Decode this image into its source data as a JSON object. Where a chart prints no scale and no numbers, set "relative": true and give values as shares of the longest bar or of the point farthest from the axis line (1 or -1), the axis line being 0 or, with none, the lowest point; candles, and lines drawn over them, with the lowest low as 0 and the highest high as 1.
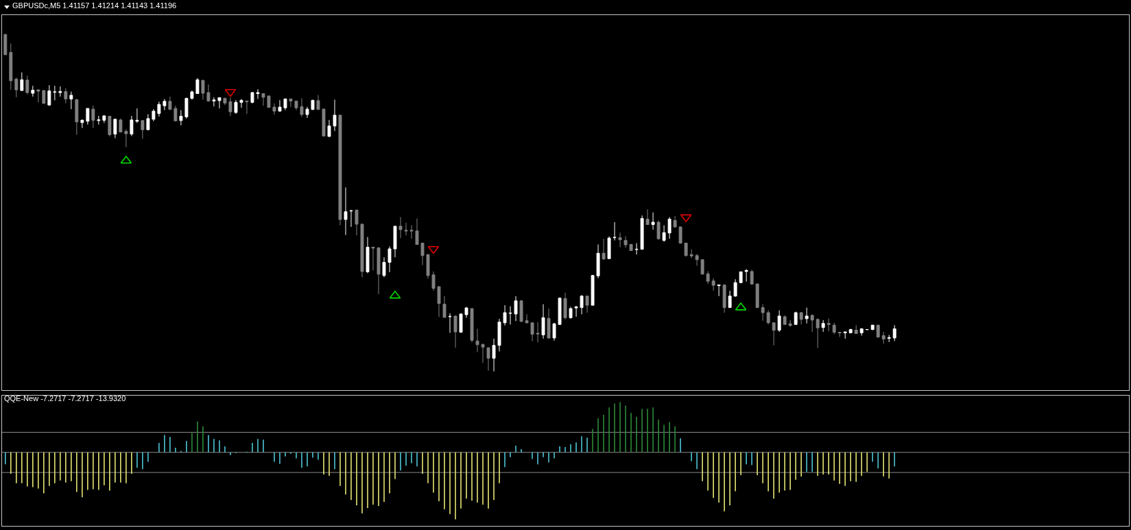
{
  "chart_data": [
    {
      "type": "candlestick",
      "title": "GBPUSDc,M5 1.41157 1.41214 1.41143 1.41196",
      "relative": true,
      "categories": [
        null,
        null,
        null,
        null,
        null,
        null,
        null,
        null,
        null,
        null,
        null,
        null,
        null,
        null,
        null,
        null,
        null,
        null,
        null,
        null,
        null,
        null,
        null,
        null,
        null,
        null,
        null,
        null,
        null,
        null,
        null,
        null,
        null,
        null,
        null,
        null,
        null,
        null,
        null,
        null,
        null,
        null,
        null,
        null,
        null,
        null,
        null,
        null,
        null,
        null,
        null,
        null,
        null,
        null,
        null,
        null,
        null,
        null,
        null,
        null,
        null,
        null,
        null,
        null,
        null,
        null,
        null,
        null,
        null,
        null,
        null,
        null,
        null,
        null,
        null,
        null,
        null,
        null,
        null,
        null,
        null,
        null,
        null,
        null,
        null,
        null,
        null,
        null,
        null,
        null,
        null,
        null,
        null,
        null,
        null,
        null,
        null,
        null,
        null,
        null,
        null,
        null,
        null,
        null,
        null,
        null,
        null,
        null,
        null,
        null,
        null,
        null,
        null,
        null,
        null,
        null,
        null,
        null,
        null,
        null,
        null,
        null,
        null,
        null,
        null,
        null,
        null,
        null,
        null,
        null,
        null,
        null,
        null,
        null,
        null,
        null,
        null,
        null,
        null,
        null,
        null,
        null,
        null,
        null,
        null,
        null,
        null,
        null,
        null,
        null,
        null,
        null,
        null,
        null,
        null,
        null,
        null,
        null,
        null,
        null,
        null,
        null,
        null
      ],
      "ohlc": [
        [
          0.998,
          1,
          0.938,
          0.938
        ],
        [
          0.945,
          0.971,
          0.834,
          0.861
        ],
        [
          0.866,
          0.87,
          0.812,
          0.834
        ],
        [
          0.832,
          0.886,
          0.831,
          0.864
        ],
        [
          0.863,
          0.876,
          0.821,
          0.826
        ],
        [
          0.824,
          0.846,
          0.814,
          0.833
        ],
        [
          0.834,
          0.836,
          0.797,
          0.83
        ],
        [
          0.832,
          0.834,
          0.793,
          0.794
        ],
        [
          0.789,
          0.848,
          0.787,
          0.831
        ],
        [
          0.827,
          0.846,
          0.803,
          0.828
        ],
        [
          0.826,
          0.844,
          0.814,
          0.829
        ],
        [
          0.829,
          0.839,
          0.794,
          0.807
        ],
        [
          0.807,
          0.829,
          0.777,
          0.818
        ],
        [
          0.805,
          0.807,
          0.701,
          0.739
        ],
        [
          0.737,
          0.747,
          0.721,
          0.744
        ],
        [
          0.741,
          0.78,
          0.731,
          0.779
        ],
        [
          0.777,
          0.787,
          0.721,
          0.744
        ],
        [
          0.743,
          0.757,
          0.731,
          0.745
        ],
        [
          0.744,
          0.759,
          0.736,
          0.757
        ],
        [
          0.756,
          0.757,
          0.696,
          0.701
        ],
        [
          0.703,
          0.749,
          0.691,
          0.747
        ],
        [
          0.745,
          0.749,
          0.708,
          0.709
        ],
        [
          0.711,
          0.717,
          0.664,
          0.704
        ],
        [
          0.703,
          0.757,
          0.697,
          0.745
        ],
        [
          0.741,
          0.779,
          0.736,
          0.744
        ],
        [
          0.743,
          0.744,
          0.689,
          0.716
        ],
        [
          0.716,
          0.762,
          0.715,
          0.749
        ],
        [
          0.747,
          0.777,
          0.741,
          0.771
        ],
        [
          0.764,
          0.799,
          0.755,
          0.791
        ],
        [
          0.787,
          0.807,
          0.774,
          0.8
        ],
        [
          0.8,
          0.814,
          0.775,
          0.776
        ],
        [
          0.779,
          0.787,
          0.741,
          0.742
        ],
        [
          0.743,
          0.774,
          0.729,
          0.756
        ],
        [
          0.754,
          0.811,
          0.749,
          0.809
        ],
        [
          0.809,
          0.832,
          0.805,
          0.828
        ],
        [
          0.823,
          0.869,
          0.822,
          0.864
        ],
        [
          0.862,
          0.864,
          0.805,
          0.824
        ],
        [
          0.826,
          0.85,
          0.799,
          0.801
        ],
        [
          0.801,
          0.812,
          0.785,
          0.804
        ],
        [
          0.802,
          0.812,
          0.779,
          0.811
        ],
        [
          0.809,
          0.811,
          0.789,
          0.795
        ],
        [
          0.799,
          0.811,
          0.757,
          0.769
        ],
        [
          0.767,
          0.804,
          0.763,
          0.797
        ],
        [
          0.797,
          0.807,
          0.781,
          0.803
        ],
        [
          0.801,
          0.802,
          0.763,
          0.799
        ],
        [
          0.797,
          0.828,
          0.794,
          0.826
        ],
        [
          0.823,
          0.836,
          0.807,
          0.826
        ],
        [
          0.823,
          0.824,
          0.787,
          0.812
        ],
        [
          0.816,
          0.817,
          0.781,
          0.782
        ],
        [
          0.783,
          0.794,
          0.761,
          0.771
        ],
        [
          0.771,
          0.804,
          0.769,
          0.783
        ],
        [
          0.781,
          0.809,
          0.774,
          0.807
        ],
        [
          0.807,
          0.809,
          0.783,
          0.801
        ],
        [
          0.801,
          0.802,
          0.774,
          0.781
        ],
        [
          0.784,
          0.809,
          0.754,
          0.761
        ],
        [
          0.761,
          0.784,
          0.751,
          0.777
        ],
        [
          0.776,
          0.805,
          0.774,
          0.803
        ],
        [
          0.802,
          0.819,
          0.775,
          0.776
        ],
        [
          0.777,
          0.779,
          0.696,
          0.697
        ],
        [
          0.696,
          0.745,
          0.695,
          0.727
        ],
        [
          0.727,
          0.805,
          0.712,
          0.759
        ],
        [
          0.759,
          0.76,
          0.433,
          0.45
        ],
        [
          0.45,
          0.545,
          0.404,
          0.473
        ],
        [
          0.475,
          0.478,
          0.428,
          0.476
        ],
        [
          0.478,
          0.479,
          0.403,
          0.436
        ],
        [
          0.436,
          0.438,
          0.279,
          0.296
        ],
        [
          0.295,
          0.398,
          0.291,
          0.368
        ],
        [
          0.368,
          0.369,
          0.299,
          0.365
        ],
        [
          0.366,
          0.368,
          0.229,
          0.288
        ],
        [
          0.284,
          0.338,
          0.279,
          0.323
        ],
        [
          0.323,
          0.37,
          0.294,
          0.363
        ],
        [
          0.363,
          0.431,
          0.338,
          0.43
        ],
        [
          0.43,
          0.457,
          0.395,
          0.42
        ],
        [
          0.418,
          0.44,
          0.403,
          0.416
        ],
        [
          0.418,
          0.433,
          0.393,
          0.416
        ],
        [
          0.416,
          0.453,
          0.375,
          0.376
        ],
        [
          0.38,
          0.381,
          0.315,
          0.343
        ],
        [
          0.346,
          0.348,
          0.275,
          0.284
        ],
        [
          0.286,
          0.296,
          0.239,
          0.246
        ],
        [
          0.251,
          0.252,
          0.161,
          0.201
        ],
        [
          0.199,
          0.223,
          0.159,
          0.16
        ],
        [
          0.162,
          0.172,
          0.114,
          0.163
        ],
        [
          0.164,
          0.165,
          0.07,
          0.117
        ],
        [
          0.116,
          0.172,
          0.114,
          0.17
        ],
        [
          0.168,
          0.191,
          0.159,
          0.188
        ],
        [
          0.186,
          0.187,
          0.086,
          0.092
        ],
        [
          0.09,
          0.126,
          0.057,
          0.079
        ],
        [
          0.08,
          0.082,
          0.025,
          0.072
        ],
        [
          0.07,
          0.072,
          0.002,
          0.039
        ],
        [
          0.039,
          0.097,
          0,
          0.077
        ],
        [
          0.077,
          0.156,
          0.059,
          0.146
        ],
        [
          0.144,
          0.196,
          0.136,
          0.174
        ],
        [
          0.172,
          0.193,
          0.139,
          0.173
        ],
        [
          0.17,
          0.223,
          0.149,
          0.209
        ],
        [
          0.209,
          0.211,
          0.146,
          0.148
        ],
        [
          0.15,
          0.169,
          0.142,
          0.144
        ],
        [
          0.144,
          0.145,
          0.089,
          0.11
        ],
        [
          0.113,
          0.146,
          0.086,
          0.111
        ],
        [
          0.108,
          0.199,
          0.097,
          0.159
        ],
        [
          0.157,
          0.186,
          0.096,
          0.099
        ],
        [
          0.099,
          0.144,
          0.091,
          0.141
        ],
        [
          0.139,
          0.219,
          0.138,
          0.217
        ],
        [
          0.216,
          0.233,
          0.154,
          0.159
        ],
        [
          0.159,
          0.191,
          0.156,
          0.186
        ],
        [
          0.188,
          0.194,
          0.162,
          0.191
        ],
        [
          0.189,
          0.226,
          0.169,
          0.223
        ],
        [
          0.223,
          0.224,
          0.174,
          0.196
        ],
        [
          0.196,
          0.286,
          0.195,
          0.284
        ],
        [
          0.283,
          0.376,
          0.276,
          0.35
        ],
        [
          0.35,
          0.393,
          0.33,
          0.333
        ],
        [
          0.334,
          0.4,
          0.333,
          0.395
        ],
        [
          0.396,
          0.442,
          0.388,
          0.397
        ],
        [
          0.396,
          0.411,
          0.368,
          0.39
        ],
        [
          0.388,
          0.4,
          0.366,
          0.375
        ],
        [
          0.376,
          0.378,
          0.357,
          0.358
        ],
        [
          0.361,
          0.38,
          0.346,
          0.362
        ],
        [
          0.362,
          0.462,
          0.36,
          0.453
        ],
        [
          0.451,
          0.48,
          0.434,
          0.435
        ],
        [
          0.435,
          0.471,
          0.42,
          0.442
        ],
        [
          0.442,
          0.447,
          0.39,
          0.393
        ],
        [
          0.388,
          0.433,
          0.384,
          0.411
        ],
        [
          0.41,
          0.457,
          0.393,
          0.451
        ],
        [
          0.447,
          0.46,
          0.426,
          0.428
        ],
        [
          0.428,
          0.429,
          0.378,
          0.38
        ],
        [
          0.38,
          0.381,
          0.34,
          0.343
        ],
        [
          0.346,
          0.362,
          0.335,
          0.342
        ],
        [
          0.343,
          0.348,
          0.313,
          0.331
        ],
        [
          0.331,
          0.332,
          0.287,
          0.288
        ],
        [
          0.289,
          0.297,
          0.259,
          0.267
        ],
        [
          0.268,
          0.276,
          0.239,
          0.255
        ],
        [
          0.254,
          0.257,
          0.223,
          0.256
        ],
        [
          0.256,
          0.257,
          0.174,
          0.189
        ],
        [
          0.189,
          0.239,
          0.188,
          0.223
        ],
        [
          0.223,
          0.273,
          0.221,
          0.263
        ],
        [
          0.263,
          0.296,
          0.261,
          0.295
        ],
        [
          0.296,
          0.303,
          0.266,
          0.299
        ],
        [
          0.296,
          0.301,
          0.256,
          0.259
        ],
        [
          0.259,
          0.261,
          0.188,
          0.189
        ],
        [
          0.189,
          0.199,
          0.15,
          0.174
        ],
        [
          0.174,
          0.181,
          0.139,
          0.144
        ],
        [
          0.144,
          0.145,
          0.077,
          0.122
        ],
        [
          0.122,
          0.181,
          0.117,
          0.164
        ],
        [
          0.162,
          0.166,
          0.138,
          0.139
        ],
        [
          0.141,
          0.152,
          0.132,
          0.136
        ],
        [
          0.139,
          0.177,
          0.138,
          0.174
        ],
        [
          0.174,
          0.176,
          0.139,
          0.154
        ],
        [
          0.156,
          0.189,
          0.142,
          0.164
        ],
        [
          0.166,
          0.169,
          0.117,
          0.152
        ],
        [
          0.154,
          0.157,
          0.069,
          0.129
        ],
        [
          0.13,
          0.152,
          0.117,
          0.142
        ],
        [
          0.142,
          0.157,
          0.119,
          0.139
        ],
        [
          0.137,
          0.144,
          0.11,
          0.116
        ],
        [
          0.116,
          0.117,
          0.102,
          0.114
        ],
        [
          0.114,
          0.118,
          0.097,
          0.117
        ],
        [
          0.114,
          0.126,
          0.113,
          0.124
        ],
        [
          0.122,
          0.137,
          0.111,
          0.112
        ],
        [
          0.114,
          0.128,
          0.106,
          0.126
        ],
        [
          0.124,
          0.125,
          0.122,
          0.124
        ],
        [
          0.124,
          0.138,
          0.122,
          0.137
        ],
        [
          0.137,
          0.138,
          0.099,
          0.102
        ],
        [
          0.106,
          0.117,
          0.082,
          0.096
        ],
        [
          0.098,
          0.108,
          0.087,
          0.1
        ],
        [
          0.099,
          0.137,
          0.09,
          0.126
        ]
      ],
      "colors": [
        "#808080",
        "#808080",
        "#808080",
        "#ffffff",
        "#808080",
        "#ffffff",
        "#808080",
        "#808080",
        "#ffffff",
        "#ffffff",
        "#ffffff",
        "#808080",
        "#ffffff",
        "#808080",
        "#ffffff",
        "#ffffff",
        "#808080",
        "#ffffff",
        "#ffffff",
        "#808080",
        "#ffffff",
        "#808080",
        "#808080",
        "#ffffff",
        "#ffffff",
        "#808080",
        "#ffffff",
        "#ffffff",
        "#ffffff",
        "#ffffff",
        "#808080",
        "#808080",
        "#ffffff",
        "#ffffff",
        "#ffffff",
        "#ffffff",
        "#808080",
        "#808080",
        "#ffffff",
        "#ffffff",
        "#808080",
        "#808080",
        "#ffffff",
        "#ffffff",
        "#808080",
        "#ffffff",
        "#ffffff",
        "#808080",
        "#808080",
        "#808080",
        "#ffffff",
        "#ffffff",
        "#808080",
        "#808080",
        "#808080",
        "#ffffff",
        "#ffffff",
        "#808080",
        "#808080",
        "#ffffff",
        "#ffffff",
        "#808080",
        "#ffffff",
        "#ffffff",
        "#808080",
        "#808080",
        "#ffffff",
        "#808080",
        "#808080",
        "#ffffff",
        "#ffffff",
        "#ffffff",
        "#808080",
        "#808080",
        "#808080",
        "#808080",
        "#808080",
        "#808080",
        "#808080",
        "#808080",
        "#808080",
        "#ffffff",
        "#808080",
        "#ffffff",
        "#ffffff",
        "#808080",
        "#808080",
        "#808080",
        "#808080",
        "#ffffff",
        "#ffffff",
        "#ffffff",
        "#ffffff",
        "#ffffff",
        "#808080",
        "#808080",
        "#808080",
        "#808080",
        "#ffffff",
        "#808080",
        "#ffffff",
        "#ffffff",
        "#808080",
        "#ffffff",
        "#ffffff",
        "#ffffff",
        "#808080",
        "#ffffff",
        "#ffffff",
        "#808080",
        "#ffffff",
        "#ffffff",
        "#808080",
        "#808080",
        "#808080",
        "#ffffff",
        "#ffffff",
        "#808080",
        "#ffffff",
        "#808080",
        "#ffffff",
        "#ffffff",
        "#808080",
        "#808080",
        "#808080",
        "#808080",
        "#808080",
        "#808080",
        "#808080",
        "#808080",
        "#ffffff",
        "#808080",
        "#ffffff",
        "#ffffff",
        "#ffffff",
        "#ffffff",
        "#808080",
        "#808080",
        "#808080",
        "#808080",
        "#808080",
        "#ffffff",
        "#808080",
        "#808080",
        "#ffffff",
        "#808080",
        "#ffffff",
        "#808080",
        "#808080",
        "#ffffff",
        "#808080",
        "#808080",
        "#808080",
        "#ffffff",
        "#ffffff",
        "#808080",
        "#ffffff",
        "#ffffff",
        "#ffffff",
        "#808080",
        "#808080",
        "#ffffff",
        "#ffffff"
      ],
      "series": [
        {
          "type": "scatter",
          "marker": "triangle",
          "color": "#00e000",
          "values": [
            null,
            null,
            null,
            null,
            null,
            null,
            null,
            null,
            null,
            null,
            null,
            null,
            null,
            null,
            null,
            null,
            null,
            null,
            null,
            null,
            null,
            null,
            0.624,
            null,
            null,
            null,
            null,
            null,
            null,
            null,
            null,
            null,
            null,
            null,
            null,
            null,
            null,
            null,
            null,
            null,
            null,
            null,
            null,
            null,
            null,
            null,
            null,
            null,
            null,
            null,
            null,
            null,
            null,
            null,
            null,
            null,
            null,
            null,
            null,
            null,
            null,
            null,
            null,
            null,
            null,
            null,
            null,
            null,
            null,
            null,
            null,
            0.224,
            null,
            null,
            null,
            null,
            null,
            null,
            null,
            null,
            null,
            null,
            null,
            null,
            null,
            null,
            null,
            null,
            null,
            null,
            null,
            null,
            null,
            null,
            null,
            null,
            null,
            null,
            null,
            null,
            null,
            null,
            null,
            null,
            null,
            null,
            null,
            null,
            null,
            null,
            null,
            null,
            null,
            null,
            null,
            null,
            null,
            null,
            null,
            null,
            null,
            null,
            null,
            null,
            null,
            null,
            null,
            null,
            null,
            null,
            null,
            null,
            null,
            null,
            0.189,
            null,
            null,
            null,
            null,
            null,
            null,
            null,
            null,
            null,
            null,
            null,
            null,
            null,
            null,
            null,
            null,
            null,
            null,
            null,
            null,
            null,
            null,
            null,
            null,
            null,
            null,
            null,
            null
          ]
        },
        {
          "type": "scatter",
          "marker": "triangle",
          "color": "#e00000",
          "values": [
            null,
            null,
            null,
            null,
            null,
            null,
            null,
            null,
            null,
            null,
            null,
            null,
            null,
            null,
            null,
            null,
            null,
            null,
            null,
            null,
            null,
            null,
            null,
            null,
            null,
            null,
            null,
            null,
            null,
            null,
            null,
            null,
            null,
            null,
            null,
            null,
            null,
            null,
            null,
            null,
            null,
            0.828,
            null,
            null,
            null,
            null,
            null,
            null,
            null,
            null,
            null,
            null,
            null,
            null,
            null,
            null,
            null,
            null,
            null,
            null,
            null,
            null,
            null,
            null,
            null,
            null,
            null,
            null,
            null,
            null,
            null,
            null,
            null,
            null,
            null,
            null,
            null,
            null,
            0.363,
            null,
            null,
            null,
            null,
            null,
            null,
            null,
            null,
            null,
            null,
            null,
            null,
            null,
            null,
            null,
            null,
            null,
            null,
            null,
            null,
            null,
            null,
            null,
            null,
            null,
            null,
            null,
            null,
            null,
            null,
            null,
            null,
            null,
            null,
            null,
            null,
            null,
            null,
            null,
            null,
            null,
            null,
            null,
            null,
            null,
            0.457,
            null,
            null,
            null,
            null,
            null,
            null,
            null,
            null,
            null,
            null,
            null,
            null,
            null,
            null,
            null,
            null,
            null,
            null,
            null,
            null,
            null,
            null,
            null,
            null,
            null,
            null,
            null,
            null,
            null,
            null,
            null,
            null,
            null,
            null,
            null,
            null,
            null,
            null
          ]
        }
      ]
    },
    {
      "type": "bar",
      "title": "QQE-New -7.2717 -7.2717 -13.9320",
      "relative": true,
      "categories": [
        null,
        null,
        null,
        null,
        null,
        null,
        null,
        null,
        null,
        null,
        null,
        null,
        null,
        null,
        null,
        null,
        null,
        null,
        null,
        null,
        null,
        null,
        null,
        null,
        null,
        null,
        null,
        null,
        null,
        null,
        null,
        null,
        null,
        null,
        null,
        null,
        null,
        null,
        null,
        null,
        null,
        null,
        null,
        null,
        null,
        null,
        null,
        null,
        null,
        null,
        null,
        null,
        null,
        null,
        null,
        null,
        null,
        null,
        null,
        null,
        null,
        null,
        null,
        null,
        null,
        null,
        null,
        null,
        null,
        null,
        null,
        null,
        null,
        null,
        null,
        null,
        null,
        null,
        null,
        null,
        null,
        null,
        null,
        null,
        null,
        null,
        null,
        null,
        null,
        null,
        null,
        null,
        null,
        null,
        null,
        null,
        null,
        null,
        null,
        null,
        null,
        null,
        null,
        null,
        null,
        null,
        null,
        null,
        null,
        null,
        null,
        null,
        null,
        null,
        null,
        null,
        null,
        null,
        null,
        null,
        null,
        null,
        null,
        null,
        null,
        null,
        null,
        null,
        null,
        null,
        null,
        null,
        null,
        null,
        null,
        null,
        null,
        null,
        null,
        null,
        null,
        null,
        null,
        null,
        null,
        null,
        null,
        null,
        null,
        null,
        null,
        null,
        null,
        null,
        null,
        null,
        null,
        null,
        null,
        null,
        null,
        null,
        null
      ],
      "values": [
        -0.18,
        -0.32,
        -0.46,
        -0.46,
        -0.51,
        -0.52,
        -0.54,
        -0.61,
        -0.5,
        -0.46,
        -0.42,
        -0.45,
        -0.43,
        -0.59,
        -0.67,
        -0.56,
        -0.55,
        -0.56,
        -0.49,
        -0.57,
        -0.45,
        -0.45,
        -0.46,
        -0.32,
        -0.23,
        -0.25,
        -0.14,
        null,
        0.14,
        0.26,
        0.23,
        0.07,
        0.02,
        0.17,
        0.29,
        0.46,
        0.39,
        0.26,
        0.2,
        0.18,
        0.09,
        -0.04,
        -0.01,
        null,
        0.01,
        0.14,
        0.2,
        0.19,
        null,
        -0.14,
        -0.17,
        -0.06,
        -0.02,
        -0.09,
        -0.23,
        -0.21,
        -0.08,
        -0.11,
        -0.33,
        -0.35,
        -0.25,
        -0.5,
        -0.63,
        -0.71,
        -0.79,
        -0.91,
        -0.83,
        -0.78,
        -0.8,
        -0.74,
        -0.61,
        -0.4,
        -0.27,
        -0.2,
        -0.16,
        -0.21,
        -0.32,
        -0.46,
        -0.6,
        -0.73,
        -0.85,
        -0.92,
        -1,
        -0.84,
        -0.69,
        -0.72,
        -0.75,
        -0.78,
        -0.84,
        -0.71,
        -0.46,
        -0.22,
        -0.07,
        0.1,
        0.05,
        null,
        -0.1,
        -0.18,
        -0.07,
        -0.15,
        -0.09,
        0.09,
        0.08,
        0.12,
        0.15,
        0.24,
        0.22,
        0.35,
        0.51,
        0.56,
        0.67,
        0.73,
        0.75,
        0.7,
        0.59,
        0.53,
        0.65,
        0.65,
        0.67,
        0.49,
        0.41,
        0.45,
        0.39,
        0.21,
        null,
        -0.13,
        -0.25,
        -0.43,
        -0.57,
        -0.68,
        -0.75,
        -0.88,
        -0.79,
        -0.58,
        -0.34,
        -0.18,
        -0.19,
        -0.34,
        -0.46,
        -0.58,
        -0.69,
        -0.6,
        -0.57,
        -0.56,
        -0.41,
        -0.36,
        -0.29,
        -0.29,
        -0.35,
        -0.33,
        -0.33,
        -0.42,
        -0.47,
        -0.5,
        -0.43,
        -0.44,
        -0.35,
        -0.29,
        -0.14,
        -0.24,
        -0.36,
        -0.39,
        -0.21
      ],
      "colors": [
        "#4fc6d6",
        "#e6e673",
        "#e6e673",
        "#e6e673",
        "#e6e673",
        "#e6e673",
        "#e6e673",
        "#e6e673",
        "#e6e673",
        "#e6e673",
        "#e6e673",
        "#e6e673",
        "#e6e673",
        "#e6e673",
        "#e6e673",
        "#e6e673",
        "#e6e673",
        "#e6e673",
        "#e6e673",
        "#e6e673",
        "#e6e673",
        "#e6e673",
        "#e6e673",
        "#e6e673",
        "#4fc6d6",
        "#4fc6d6",
        "#4fc6d6",
        "#4fc6d6",
        "#4fc6d6",
        "#4fc6d6",
        "#4fc6d6",
        "#4fc6d6",
        "#4fc6d6",
        "#4fc6d6",
        "#2e8b3a",
        "#2e8b3a",
        "#2e8b3a",
        "#4fc6d6",
        "#4fc6d6",
        "#4fc6d6",
        "#4fc6d6",
        "#4fc6d6",
        "#4fc6d6",
        "#4fc6d6",
        "#4fc6d6",
        "#4fc6d6",
        "#4fc6d6",
        "#4fc6d6",
        "#4fc6d6",
        "#4fc6d6",
        "#4fc6d6",
        "#4fc6d6",
        "#4fc6d6",
        "#4fc6d6",
        "#4fc6d6",
        "#4fc6d6",
        "#4fc6d6",
        "#4fc6d6",
        "#e6e673",
        "#e6e673",
        "#4fc6d6",
        "#e6e673",
        "#e6e673",
        "#e6e673",
        "#e6e673",
        "#e6e673",
        "#e6e673",
        "#e6e673",
        "#e6e673",
        "#e6e673",
        "#e6e673",
        "#e6e673",
        "#4fc6d6",
        "#4fc6d6",
        "#4fc6d6",
        "#4fc6d6",
        "#e6e673",
        "#e6e673",
        "#e6e673",
        "#e6e673",
        "#e6e673",
        "#e6e673",
        "#e6e673",
        "#e6e673",
        "#e6e673",
        "#e6e673",
        "#e6e673",
        "#e6e673",
        "#e6e673",
        "#e6e673",
        "#e6e673",
        "#4fc6d6",
        "#4fc6d6",
        "#4fc6d6",
        "#4fc6d6",
        "#4fc6d6",
        "#4fc6d6",
        "#4fc6d6",
        "#4fc6d6",
        "#4fc6d6",
        "#4fc6d6",
        "#4fc6d6",
        "#4fc6d6",
        "#4fc6d6",
        "#4fc6d6",
        "#4fc6d6",
        "#4fc6d6",
        "#2e8b3a",
        "#2e8b3a",
        "#2e8b3a",
        "#2e8b3a",
        "#2e8b3a",
        "#2e8b3a",
        "#2e8b3a",
        "#2e8b3a",
        "#2e8b3a",
        "#2e8b3a",
        "#2e8b3a",
        "#2e8b3a",
        "#2e8b3a",
        "#2e8b3a",
        "#2e8b3a",
        "#2e8b3a",
        "#4fc6d6",
        "#4fc6d6",
        "#4fc6d6",
        "#4fc6d6",
        "#e6e673",
        "#e6e673",
        "#e6e673",
        "#e6e673",
        "#e6e673",
        "#e6e673",
        "#e6e673",
        "#e6e673",
        "#4fc6d6",
        "#4fc6d6",
        "#e6e673",
        "#e6e673",
        "#e6e673",
        "#e6e673",
        "#e6e673",
        "#e6e673",
        "#e6e673",
        "#e6e673",
        "#e6e673",
        "#4fc6d6",
        "#4fc6d6",
        "#e6e673",
        "#e6e673",
        "#e6e673",
        "#e6e673",
        "#e6e673",
        "#e6e673",
        "#e6e673",
        "#e6e673",
        "#e6e673",
        "#e6e673",
        "#4fc6d6",
        "#4fc6d6",
        "#e6e673",
        "#e6e673",
        "#4fc6d6"
      ],
      "ref_lines": [
        {
          "axis": "y",
          "value": 0.3,
          "color": "#8c8c8c"
        },
        {
          "axis": "y",
          "value": 0,
          "color": "#8c8c8c"
        },
        {
          "axis": "y",
          "value": -0.3,
          "color": "#8c8c8c"
        }
      ]
    }
  ]
}
